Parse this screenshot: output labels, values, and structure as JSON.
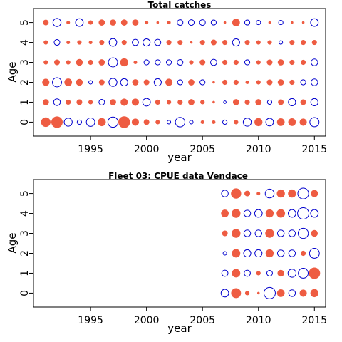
{
  "colors": {
    "positive": "#EE5C42",
    "negative": "#0000CD",
    "axis": "#000000"
  },
  "chart_data": [
    {
      "type": "bubble",
      "title": "Total catches",
      "xlabel": "year",
      "ylabel": "Age",
      "xlim": [
        1989.9,
        2016
      ],
      "ylim": [
        -0.7,
        5.7
      ],
      "xticks": [
        1995,
        2000,
        2005,
        2010,
        2015
      ],
      "yticks": [
        0,
        1,
        2,
        3,
        4,
        5
      ],
      "years": [
        1991,
        1992,
        1993,
        1994,
        1995,
        1996,
        1997,
        1998,
        1999,
        2000,
        2001,
        2002,
        2003,
        2004,
        2005,
        2006,
        2007,
        2008,
        2009,
        2010,
        2011,
        2012,
        2013,
        2014,
        2015
      ],
      "ages": [
        0,
        1,
        2,
        3,
        4,
        5
      ],
      "residuals": [
        [
          1.4,
          2.0,
          -1.0,
          -0.3,
          -1.1,
          1.0,
          -1.6,
          2.1,
          0.8,
          0.5,
          0.3,
          -0.2,
          -1.4,
          -0.2,
          0.2,
          0.2,
          -0.3,
          0.3,
          -1.0,
          1.0,
          -0.9,
          0.9,
          0.9,
          0.8,
          -1.3
        ],
        [
          0.6,
          -0.7,
          0.4,
          0.5,
          0.3,
          -0.5,
          0.6,
          0.8,
          0.8,
          -0.9,
          0.4,
          0.3,
          0.4,
          0.6,
          0.3,
          0.1,
          -0.1,
          0.6,
          0.4,
          0.6,
          -0.3,
          0.5,
          -0.8,
          0.5,
          -0.8
        ],
        [
          0.8,
          -1.3,
          0.9,
          0.7,
          -0.2,
          0.5,
          -1.0,
          -0.8,
          0.6,
          0.5,
          -0.8,
          0.8,
          -0.4,
          0.6,
          -0.4,
          0.1,
          0.4,
          0.4,
          0.2,
          0.3,
          0.5,
          0.6,
          0.4,
          -0.4,
          -0.7
        ],
        [
          0.3,
          0.5,
          0.3,
          0.7,
          0.4,
          0.6,
          -1.3,
          1.0,
          0.2,
          -0.4,
          -0.4,
          -0.4,
          -0.5,
          0.3,
          0.5,
          -0.6,
          0.4,
          0.4,
          -0.4,
          0.3,
          0.5,
          0.6,
          0.4,
          0.4,
          -0.7
        ],
        [
          0.3,
          -0.5,
          0.2,
          0.3,
          0.2,
          0.4,
          -0.9,
          0.4,
          -0.6,
          -0.8,
          -0.6,
          0.4,
          0.4,
          0.1,
          0.4,
          0.5,
          0.4,
          -0.8,
          0.4,
          0.3,
          0.3,
          -0.2,
          0.4,
          0.4,
          0.4
        ],
        [
          0.5,
          -1.0,
          0.2,
          -0.9,
          0.3,
          0.6,
          0.6,
          0.6,
          0.6,
          0.2,
          0.1,
          0.2,
          -0.5,
          -0.5,
          -0.5,
          -0.4,
          0.1,
          0.9,
          -0.4,
          -0.3,
          0.1,
          -0.3,
          0.1,
          0.1,
          -0.9
        ]
      ]
    },
    {
      "type": "bubble",
      "title": "Fleet 03:  CPUE data Vendace",
      "xlabel": "year",
      "ylabel": "Age",
      "xlim": [
        1989.9,
        2016
      ],
      "ylim": [
        -0.7,
        5.7
      ],
      "xticks": [
        1995,
        2000,
        2005,
        2010,
        2015
      ],
      "yticks": [
        0,
        1,
        2,
        3,
        4,
        5
      ],
      "years": [
        2007,
        2008,
        2009,
        2010,
        2011,
        2012,
        2013,
        2014,
        2015
      ],
      "ages": [
        0,
        1,
        2,
        3,
        4,
        5
      ],
      "residuals": [
        [
          -0.9,
          1.5,
          0.3,
          0.1,
          -2.0,
          0.9,
          -0.7,
          0.8,
          1.0
        ],
        [
          -0.6,
          1.1,
          -0.6,
          0.3,
          -0.5,
          0.7,
          -1.0,
          -1.5,
          2.0
        ],
        [
          -0.2,
          1.1,
          -0.8,
          -0.8,
          1.0,
          -0.7,
          -0.7,
          0.4,
          -1.5
        ],
        [
          0.5,
          1.2,
          -0.7,
          -0.7,
          1.2,
          -0.7,
          -0.7,
          -1.6,
          0.7
        ],
        [
          0.9,
          1.2,
          -0.7,
          -0.9,
          1.0,
          1.1,
          -0.9,
          -2.0,
          -0.9
        ],
        [
          -0.7,
          1.6,
          0.5,
          0.2,
          -1.2,
          1.0,
          1.0,
          -1.8,
          0.8
        ]
      ]
    }
  ]
}
